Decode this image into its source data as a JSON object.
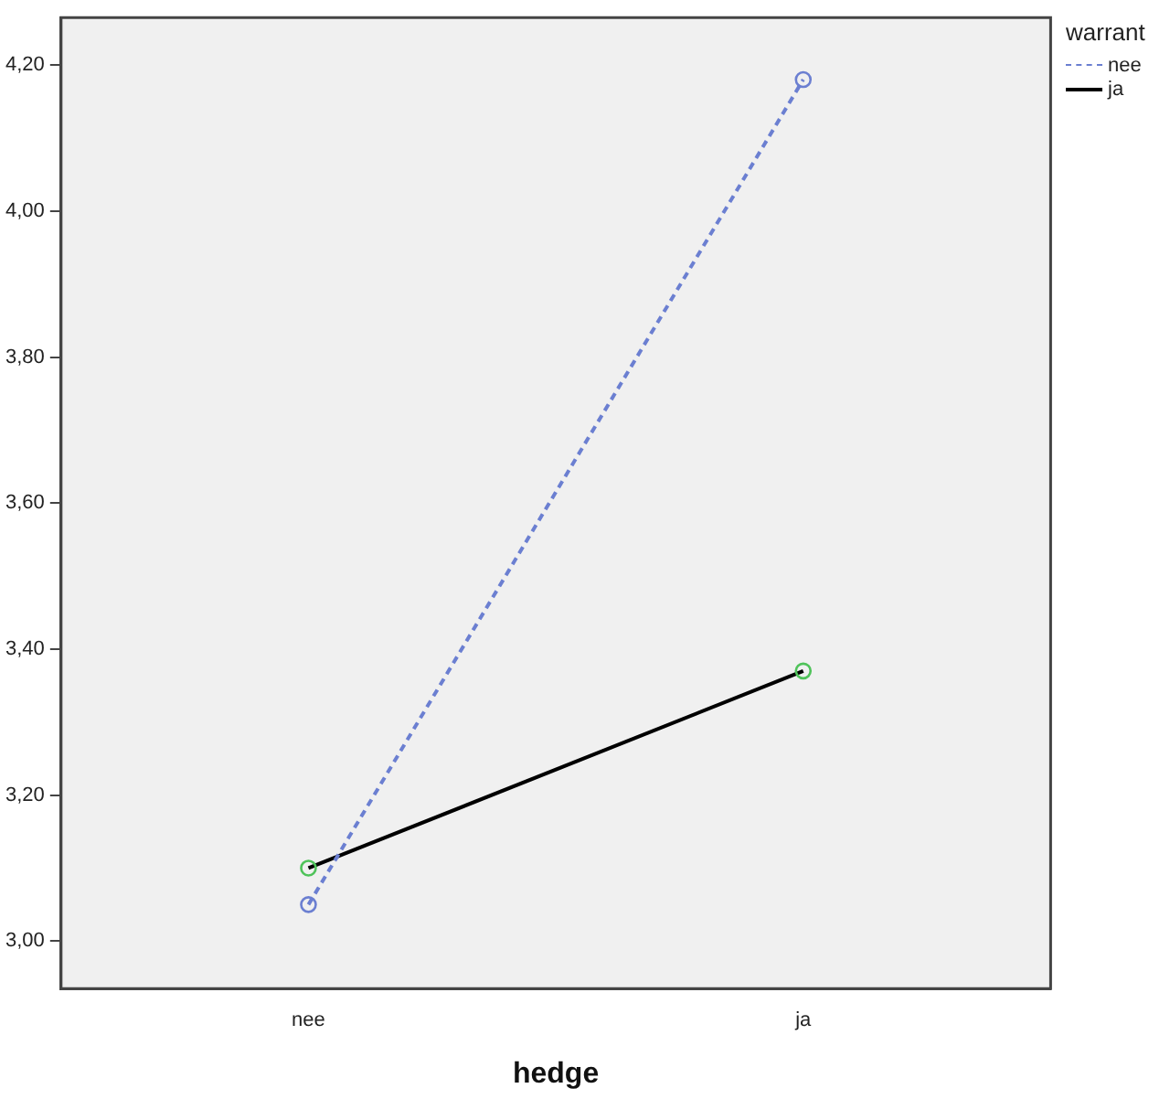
{
  "chart_data": {
    "type": "line",
    "xlabel": "hedge",
    "legend_title": "warrant",
    "categories": [
      "nee",
      "ja"
    ],
    "series": [
      {
        "name": "nee",
        "color": "#6b7fd1",
        "colors": [
          "#6b7fd1",
          "#6b7fd1"
        ],
        "line_style": "dashed",
        "values": [
          3.05,
          4.18
        ]
      },
      {
        "name": "ja",
        "color": "#000000",
        "colors": [
          "#4fc35a",
          "#4fc35a"
        ],
        "line_style": "solid",
        "values": [
          3.1,
          3.37
        ]
      }
    ],
    "ylim": [
      2.935,
      4.265
    ],
    "yticks": [
      {
        "value": 3.0,
        "label": "3,00"
      },
      {
        "value": 3.2,
        "label": "3,20"
      },
      {
        "value": 3.4,
        "label": "3,40"
      },
      {
        "value": 3.6,
        "label": "3,60"
      },
      {
        "value": 3.8,
        "label": "3,80"
      },
      {
        "value": 4.0,
        "label": "4,00"
      },
      {
        "value": 4.2,
        "label": "4,20"
      }
    ],
    "marker": "circle",
    "grid": false,
    "legend": "top right"
  }
}
